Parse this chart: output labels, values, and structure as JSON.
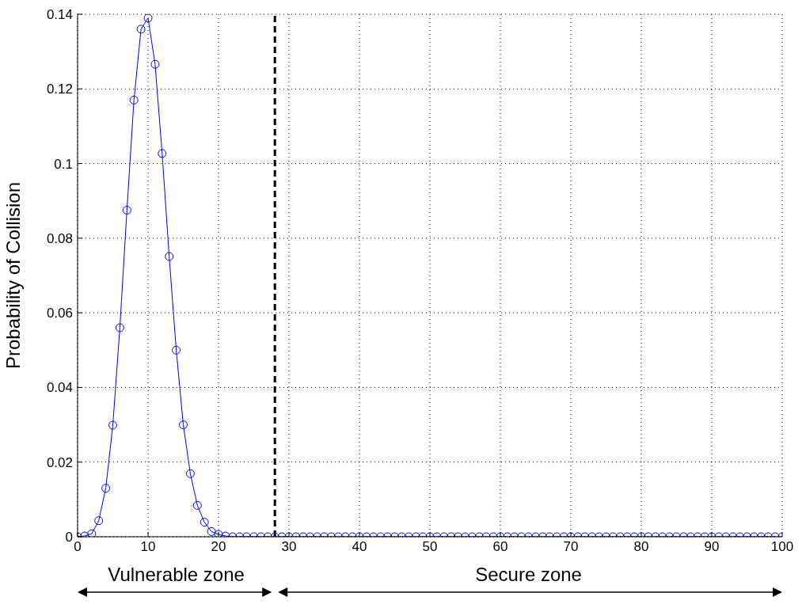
{
  "chart_data": {
    "type": "line",
    "ylabel": "Probability of Collision",
    "x": [
      0,
      1,
      2,
      3,
      4,
      5,
      6,
      7,
      8,
      9,
      10,
      11,
      12,
      13,
      14,
      15,
      16,
      17,
      18,
      19,
      20,
      21,
      22,
      23,
      24,
      25,
      26,
      27,
      28,
      29,
      30,
      31,
      32,
      33,
      34,
      35,
      36,
      37,
      38,
      39,
      40,
      41,
      42,
      43,
      44,
      45,
      46,
      47,
      48,
      49,
      50,
      51,
      52,
      53,
      54,
      55,
      56,
      57,
      58,
      59,
      60,
      61,
      62,
      63,
      64,
      65,
      66,
      67,
      68,
      69,
      70,
      71,
      72,
      73,
      74,
      75,
      76,
      77,
      78,
      79,
      80,
      81,
      82,
      83,
      84,
      85,
      86,
      87,
      88,
      89,
      90,
      91,
      92,
      93,
      94,
      95,
      96,
      97,
      98,
      99,
      100
    ],
    "series": [
      {
        "color": "#0000ff",
        "values": [
          0,
          0.0002,
          0.0008,
          0.0043,
          0.013,
          0.0299,
          0.056,
          0.0875,
          0.117,
          0.136,
          0.139,
          0.1266,
          0.1027,
          0.0751,
          0.05,
          0.03,
          0.0169,
          0.0084,
          0.0039,
          0.0014,
          0.0006,
          0.0002,
          0,
          0,
          0,
          0,
          0,
          0,
          0,
          0,
          0,
          0,
          0,
          0,
          0,
          0,
          0,
          0,
          0,
          0,
          0,
          0,
          0,
          0,
          0,
          0,
          0,
          0,
          0,
          0,
          0,
          0,
          0,
          0,
          0,
          0,
          0,
          0,
          0,
          0,
          0,
          0,
          0,
          0,
          0,
          0,
          0,
          0,
          0,
          0,
          0,
          0,
          0,
          0,
          0,
          0,
          0,
          0,
          0,
          0,
          0,
          0,
          0,
          0,
          0,
          0,
          0,
          0,
          0,
          0,
          0,
          0,
          0,
          0,
          0,
          0,
          0,
          0,
          0,
          0,
          0
        ]
      }
    ],
    "xlim": [
      0,
      100
    ],
    "xticks": [
      0,
      10,
      20,
      30,
      40,
      50,
      60,
      70,
      80,
      90,
      100
    ],
    "ylim": [
      0,
      0.14
    ],
    "yticks": [
      0,
      0.02,
      0.04,
      0.06,
      0.08,
      0.1,
      0.12,
      0.14
    ],
    "grid": true,
    "marker": "circle",
    "line_style": "solid",
    "ref_lines": [
      {
        "axis": "x",
        "value": 28,
        "color": "#000000",
        "line_style": "dashed"
      }
    ],
    "annotations": [
      "Vulnerable zone",
      "Secure zone"
    ]
  }
}
